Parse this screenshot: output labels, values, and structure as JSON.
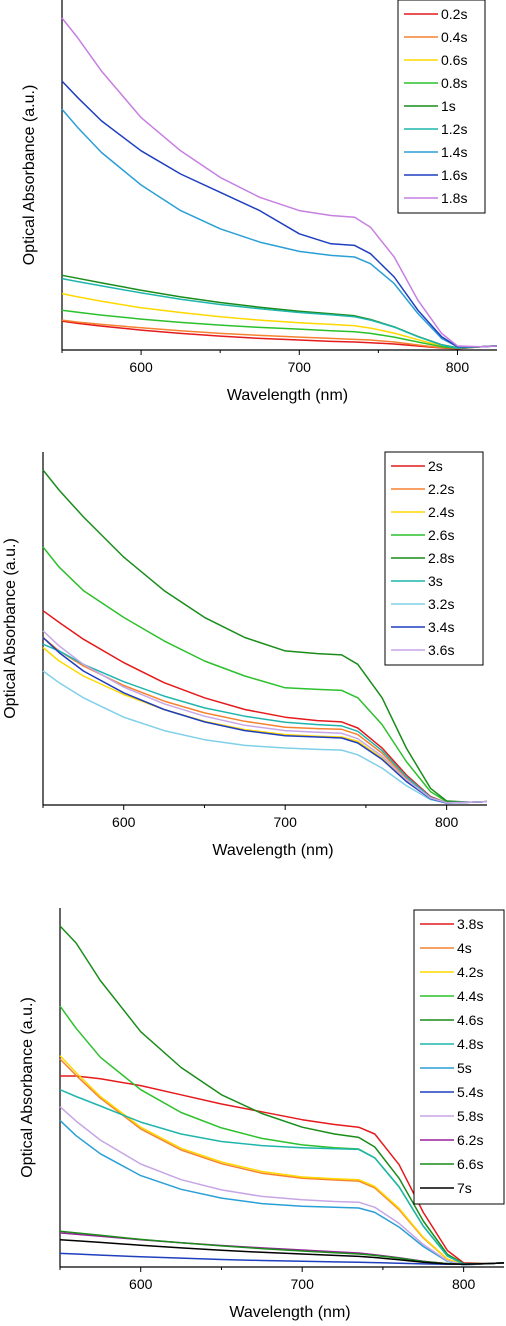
{
  "chart_data": [
    {
      "type": "line",
      "xlabel": "Wavelength (nm)",
      "ylabel": "Optical Absorbance (a.u.)",
      "xlim": [
        550,
        825
      ],
      "ylim": [
        0,
        1
      ],
      "xticks": [
        600,
        700,
        800
      ],
      "legend": "top-right",
      "x": [
        550,
        560,
        575,
        600,
        625,
        650,
        675,
        700,
        720,
        735,
        745,
        760,
        775,
        790,
        800,
        815,
        825
      ],
      "series": [
        {
          "name": "0.2s",
          "color": "#e41a1c",
          "values": [
            0.087,
            0.08,
            0.072,
            0.06,
            0.05,
            0.042,
            0.035,
            0.03,
            0.026,
            0.024,
            0.022,
            0.018,
            0.012,
            0.006,
            0.004,
            0.01,
            0.013
          ]
        },
        {
          "name": "0.4s",
          "color": "#f58231",
          "values": [
            0.09,
            0.084,
            0.077,
            0.067,
            0.058,
            0.05,
            0.044,
            0.039,
            0.035,
            0.032,
            0.03,
            0.024,
            0.015,
            0.007,
            0.005,
            0.01,
            0.013
          ]
        },
        {
          "name": "0.6s",
          "color": "#ffd800",
          "values": [
            0.17,
            0.16,
            0.147,
            0.127,
            0.113,
            0.1,
            0.09,
            0.082,
            0.077,
            0.073,
            0.066,
            0.051,
            0.031,
            0.012,
            0.006,
            0.01,
            0.013
          ]
        },
        {
          "name": "0.8s",
          "color": "#2cc02c",
          "values": [
            0.12,
            0.114,
            0.105,
            0.093,
            0.083,
            0.075,
            0.068,
            0.063,
            0.058,
            0.055,
            0.05,
            0.039,
            0.024,
            0.01,
            0.005,
            0.01,
            0.013
          ]
        },
        {
          "name": "1s",
          "color": "#1a8c1a",
          "values": [
            0.225,
            0.216,
            0.202,
            0.18,
            0.16,
            0.143,
            0.129,
            0.117,
            0.109,
            0.103,
            0.092,
            0.07,
            0.041,
            0.016,
            0.007,
            0.01,
            0.013
          ]
        },
        {
          "name": "1.2s",
          "color": "#1fb5ad",
          "values": [
            0.215,
            0.206,
            0.193,
            0.172,
            0.153,
            0.137,
            0.124,
            0.113,
            0.106,
            0.1,
            0.09,
            0.069,
            0.04,
            0.015,
            0.006,
            0.01,
            0.013
          ]
        },
        {
          "name": "1.4s",
          "color": "#2a9fd6",
          "values": [
            0.725,
            0.67,
            0.595,
            0.497,
            0.42,
            0.365,
            0.325,
            0.297,
            0.285,
            0.28,
            0.26,
            0.2,
            0.11,
            0.035,
            0.01,
            0.01,
            0.012
          ]
        },
        {
          "name": "1.6s",
          "color": "#1f3fbf",
          "values": [
            0.81,
            0.76,
            0.69,
            0.6,
            0.53,
            0.475,
            0.42,
            0.35,
            0.32,
            0.315,
            0.29,
            0.22,
            0.12,
            0.04,
            0.01,
            0.01,
            0.012
          ]
        },
        {
          "name": "1.8s",
          "color": "#c77fe0",
          "values": [
            1.0,
            0.94,
            0.84,
            0.7,
            0.6,
            0.52,
            0.46,
            0.42,
            0.405,
            0.4,
            0.37,
            0.28,
            0.15,
            0.05,
            0.012,
            0.01,
            0.012
          ]
        }
      ]
    },
    {
      "type": "line",
      "xlabel": "Wavelength (nm)",
      "ylabel": "Optical Absorbance (a.u.)",
      "xlim": [
        550,
        825
      ],
      "ylim": [
        0,
        1
      ],
      "xticks": [
        600,
        700,
        800
      ],
      "legend": "top-right",
      "x": [
        550,
        560,
        575,
        600,
        625,
        650,
        675,
        700,
        720,
        735,
        745,
        760,
        775,
        790,
        800,
        815,
        825
      ],
      "series": [
        {
          "name": "2s",
          "color": "#e41a1c",
          "values": [
            0.58,
            0.545,
            0.495,
            0.425,
            0.365,
            0.32,
            0.285,
            0.262,
            0.252,
            0.248,
            0.23,
            0.17,
            0.09,
            0.025,
            0.007,
            0.008,
            0.01
          ]
        },
        {
          "name": "2.2s",
          "color": "#f58231",
          "values": [
            0.5,
            0.46,
            0.415,
            0.357,
            0.31,
            0.275,
            0.25,
            0.232,
            0.228,
            0.226,
            0.21,
            0.155,
            0.08,
            0.022,
            0.007,
            0.008,
            0.01
          ]
        },
        {
          "name": "2.4s",
          "color": "#ffd800",
          "values": [
            0.47,
            0.43,
            0.385,
            0.33,
            0.285,
            0.25,
            0.225,
            0.21,
            0.205,
            0.203,
            0.19,
            0.14,
            0.072,
            0.02,
            0.007,
            0.008,
            0.01
          ]
        },
        {
          "name": "2.6s",
          "color": "#2cc02c",
          "values": [
            0.77,
            0.71,
            0.64,
            0.56,
            0.49,
            0.43,
            0.385,
            0.35,
            0.345,
            0.342,
            0.32,
            0.24,
            0.13,
            0.04,
            0.01,
            0.008,
            0.01
          ]
        },
        {
          "name": "2.8s",
          "color": "#1a8c1a",
          "values": [
            1.0,
            0.94,
            0.86,
            0.74,
            0.64,
            0.56,
            0.5,
            0.46,
            0.452,
            0.448,
            0.42,
            0.32,
            0.17,
            0.05,
            0.012,
            0.008,
            0.01
          ]
        },
        {
          "name": "3s",
          "color": "#1fb5ad",
          "values": [
            0.48,
            0.46,
            0.42,
            0.368,
            0.325,
            0.29,
            0.265,
            0.247,
            0.24,
            0.236,
            0.22,
            0.162,
            0.085,
            0.023,
            0.007,
            0.008,
            0.01
          ]
        },
        {
          "name": "3.2s",
          "color": "#7fd0e8",
          "values": [
            0.4,
            0.365,
            0.32,
            0.262,
            0.222,
            0.195,
            0.178,
            0.17,
            0.166,
            0.164,
            0.15,
            0.11,
            0.058,
            0.016,
            0.006,
            0.008,
            0.01
          ]
        },
        {
          "name": "3.4s",
          "color": "#1f3fbf",
          "values": [
            0.5,
            0.455,
            0.4,
            0.335,
            0.285,
            0.248,
            0.222,
            0.207,
            0.203,
            0.2,
            0.185,
            0.136,
            0.07,
            0.019,
            0.006,
            0.008,
            0.01
          ]
        },
        {
          "name": "3.6s",
          "color": "#c7a6e6",
          "values": [
            0.52,
            0.475,
            0.42,
            0.352,
            0.302,
            0.265,
            0.238,
            0.222,
            0.217,
            0.214,
            0.198,
            0.146,
            0.076,
            0.021,
            0.007,
            0.008,
            0.01
          ]
        }
      ]
    },
    {
      "type": "line",
      "xlabel": "Wavelength (nm)",
      "ylabel": "Optical Absorbance (a.u.)",
      "xlim": [
        550,
        825
      ],
      "ylim": [
        0,
        1
      ],
      "xticks": [
        600,
        700,
        800
      ],
      "legend": "top-right",
      "x": [
        550,
        560,
        575,
        600,
        625,
        650,
        675,
        700,
        720,
        735,
        745,
        760,
        775,
        790,
        800,
        815,
        825
      ],
      "series": [
        {
          "name": "3.8s",
          "color": "#e41a1c",
          "values": [
            0.56,
            0.56,
            0.552,
            0.532,
            0.505,
            0.478,
            0.455,
            0.432,
            0.418,
            0.41,
            0.39,
            0.3,
            0.16,
            0.048,
            0.012,
            0.01,
            0.012
          ]
        },
        {
          "name": "4s",
          "color": "#f58231",
          "values": [
            0.61,
            0.562,
            0.495,
            0.405,
            0.343,
            0.303,
            0.275,
            0.26,
            0.255,
            0.252,
            0.232,
            0.168,
            0.085,
            0.022,
            0.008,
            0.01,
            0.012
          ]
        },
        {
          "name": "4.2s",
          "color": "#ffd800",
          "values": [
            0.62,
            0.57,
            0.5,
            0.41,
            0.348,
            0.308,
            0.28,
            0.264,
            0.259,
            0.256,
            0.236,
            0.172,
            0.087,
            0.023,
            0.008,
            0.01,
            0.012
          ]
        },
        {
          "name": "4.4s",
          "color": "#2cc02c",
          "values": [
            0.765,
            0.7,
            0.615,
            0.52,
            0.453,
            0.408,
            0.377,
            0.358,
            0.35,
            0.346,
            0.32,
            0.235,
            0.12,
            0.032,
            0.009,
            0.01,
            0.012
          ]
        },
        {
          "name": "4.6s",
          "color": "#1a8c1a",
          "values": [
            1.0,
            0.95,
            0.84,
            0.69,
            0.585,
            0.505,
            0.45,
            0.41,
            0.39,
            0.38,
            0.352,
            0.26,
            0.135,
            0.037,
            0.01,
            0.01,
            0.012
          ]
        },
        {
          "name": "4.8s",
          "color": "#1fb5ad",
          "values": [
            0.52,
            0.5,
            0.472,
            0.425,
            0.39,
            0.368,
            0.356,
            0.35,
            0.347,
            0.345,
            0.32,
            0.235,
            0.12,
            0.032,
            0.009,
            0.01,
            0.012
          ]
        },
        {
          "name": "5s",
          "color": "#2a9fd6",
          "values": [
            0.43,
            0.385,
            0.332,
            0.268,
            0.228,
            0.202,
            0.186,
            0.178,
            0.175,
            0.173,
            0.16,
            0.117,
            0.06,
            0.016,
            0.006,
            0.01,
            0.012
          ]
        },
        {
          "name": "5.4s",
          "color": "#1f3fbf",
          "values": [
            0.04,
            0.038,
            0.035,
            0.03,
            0.026,
            0.022,
            0.019,
            0.017,
            0.015,
            0.014,
            0.013,
            0.011,
            0.009,
            0.008,
            0.008,
            0.01,
            0.012
          ]
        },
        {
          "name": "5.8s",
          "color": "#c7a6e6",
          "values": [
            0.47,
            0.428,
            0.372,
            0.302,
            0.256,
            0.226,
            0.207,
            0.197,
            0.192,
            0.19,
            0.175,
            0.128,
            0.066,
            0.018,
            0.007,
            0.01,
            0.012
          ]
        },
        {
          "name": "6.2s",
          "color": "#9b1f9b",
          "values": [
            0.1,
            0.096,
            0.09,
            0.08,
            0.071,
            0.063,
            0.056,
            0.05,
            0.045,
            0.041,
            0.036,
            0.027,
            0.017,
            0.01,
            0.008,
            0.01,
            0.012
          ]
        },
        {
          "name": "6.6s",
          "color": "#1a8c1a",
          "values": [
            0.105,
            0.1,
            0.093,
            0.081,
            0.071,
            0.062,
            0.054,
            0.047,
            0.042,
            0.038,
            0.034,
            0.026,
            0.016,
            0.01,
            0.008,
            0.01,
            0.012
          ]
        },
        {
          "name": "7s",
          "color": "#000000",
          "values": [
            0.08,
            0.077,
            0.072,
            0.064,
            0.056,
            0.049,
            0.043,
            0.038,
            0.034,
            0.031,
            0.028,
            0.021,
            0.014,
            0.009,
            0.008,
            0.01,
            0.012
          ]
        }
      ]
    }
  ]
}
